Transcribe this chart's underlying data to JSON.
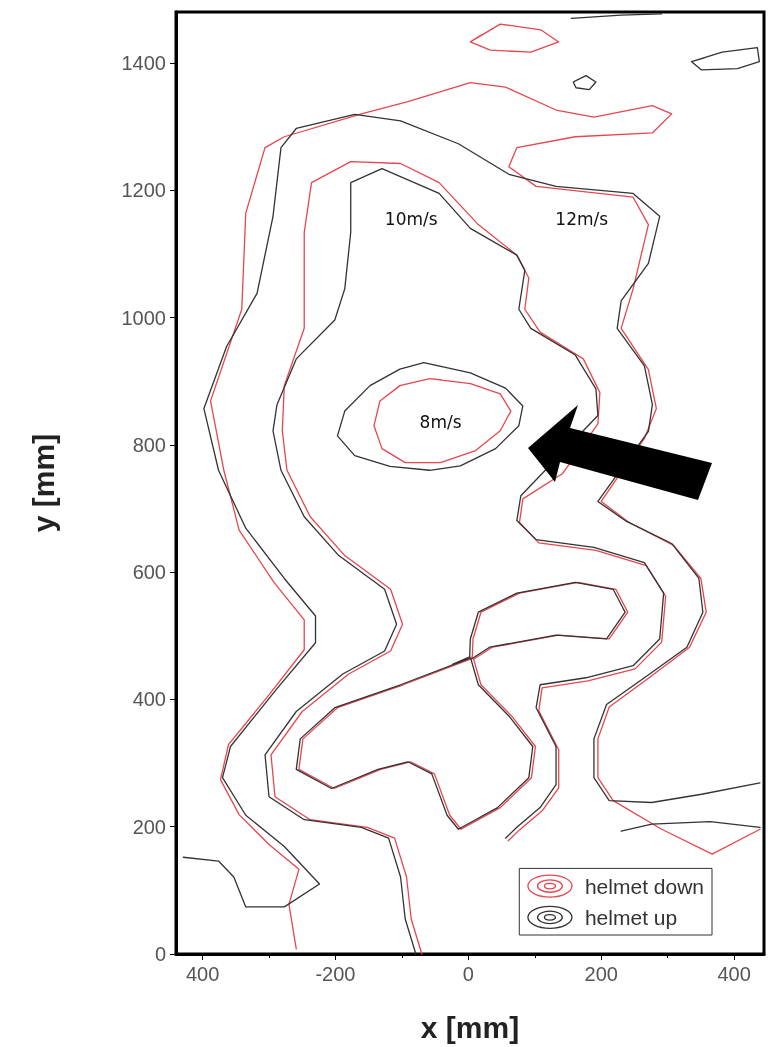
{
  "chart_data": {
    "type": "line",
    "xlabel": "x [mm]",
    "ylabel": "y [mm]",
    "xlim": [
      -440,
      445
    ],
    "ylim": [
      0,
      1480
    ],
    "xticks": [
      {
        "value": -400,
        "label": "400"
      },
      -200,
      0,
      200,
      400
    ],
    "yticks": [
      0,
      200,
      400,
      600,
      800,
      1000,
      1200,
      1400
    ],
    "grid": false,
    "legend": "bottom right",
    "marker": "none",
    "line_style": "solid",
    "annotations": [
      "10m/s",
      "12m/s",
      "8m/s"
    ],
    "series": [
      {
        "name": "helmet down",
        "color": "#e8464f",
        "x": [
          -259,
          -270,
          -255,
          -300,
          -345,
          -373,
          -361,
          -300,
          -247,
          -247,
          -292,
          -345,
          -368,
          -388,
          -341,
          -335,
          -306,
          -277,
          -161,
          -91,
          3,
          56,
          132,
          189,
          277,
          306,
          277,
          161,
          73,
          61,
          102,
          248,
          271,
          248,
          230,
          271,
          283,
          265,
          200,
          242,
          309,
          350,
          358,
          333,
          268,
          212,
          195,
          195,
          218,
          291,
          367,
          439
        ],
        "values": [
          8,
          78,
          133,
          172,
          219,
          274,
          329,
          407,
          478,
          525,
          583,
          666,
          760,
          869,
          1013,
          1164,
          1267,
          1284,
          1320,
          1339,
          1369,
          1362,
          1326,
          1315,
          1333,
          1320,
          1290,
          1284,
          1267,
          1237,
          1206,
          1189,
          1146,
          1045,
          983,
          918,
          857,
          810,
          711,
          678,
          642,
          590,
          537,
          482,
          431,
          388,
          338,
          277,
          241,
          196,
          157,
          196
        ]
      },
      {
        "color": "#e8464f",
        "x": [
          -70,
          -86,
          -93,
          -111,
          -152,
          -238,
          -291,
          -297,
          -250,
          -180,
          -117,
          -99,
          -117,
          -186,
          -238,
          -273,
          -280,
          -277,
          -247,
          -247,
          -236,
          -177,
          -102,
          -44,
          15,
          73,
          91,
          85,
          108,
          173,
          198,
          195,
          142,
          82,
          77,
          106,
          192,
          268,
          297,
          291,
          251,
          180,
          111,
          106,
          136,
          136,
          112,
          77,
          60
        ],
        "values": [
          0,
          55,
          121,
          182,
          199,
          211,
          247,
          313,
          381,
          440,
          476,
          518,
          573,
          626,
          687,
          760,
          822,
          893,
          983,
          1134,
          1212,
          1245,
          1242,
          1212,
          1146,
          1098,
          1062,
          1013,
          977,
          935,
          882,
          833,
          755,
          715,
          678,
          646,
          634,
          610,
          562,
          490,
          448,
          429,
          418,
          382,
          321,
          261,
          226,
          195,
          178
        ]
      },
      {
        "color": "#e8464f",
        "x": [
          -58,
          3,
          48,
          64,
          48,
          11,
          -42,
          -95,
          -130,
          -142,
          -133,
          -103,
          -58,
          -40
        ],
        "values": [
          904,
          896,
          880,
          853,
          822,
          791,
          772,
          772,
          794,
          830,
          869,
          893,
          904,
          902
        ]
      },
      {
        "color": "#e8464f",
        "x": [
          7,
          -98,
          -197,
          -249,
          -255,
          -202,
          -132,
          -87,
          -51,
          -28,
          -11,
          48,
          95,
          101,
          65,
          19,
          8,
          36,
          136,
          212,
          240,
          222,
          165,
          77,
          19,
          7,
          6,
          -20
        ],
        "values": [
          465,
          423,
          387,
          338,
          290,
          260,
          290,
          302,
          283,
          218,
          196,
          230,
          277,
          326,
          374,
          423,
          463,
          482,
          501,
          495,
          537,
          573,
          584,
          567,
          537,
          495,
          467,
          455
        ]
      },
      {
        "color": "#e8464f",
        "x": [
          3,
          48,
          109,
          136,
          94,
          33,
          3,
          20
        ],
        "values": [
          1433,
          1461,
          1452,
          1433,
          1417,
          1420,
          1433,
          1444
        ]
      },
      {
        "name": "helmet up",
        "color": "#333333",
        "x": [
          -429,
          -376,
          -353,
          -335,
          -277,
          -224,
          -277,
          -335,
          -370,
          -358,
          -288,
          -230,
          -230,
          -277,
          -335,
          -376,
          -398,
          -364,
          -318,
          -294,
          -282,
          -259,
          -171,
          -102,
          -15,
          61,
          132,
          248,
          288,
          271,
          230,
          224,
          265,
          277,
          271,
          195,
          236,
          306,
          347,
          353,
          329,
          265,
          208,
          189,
          189,
          212,
          276,
          351,
          439
        ],
        "values": [
          152,
          146,
          121,
          74,
          74,
          110,
          169,
          218,
          277,
          326,
          417,
          489,
          531,
          590,
          669,
          760,
          857,
          954,
          1038,
          1159,
          1267,
          1297,
          1319,
          1309,
          1273,
          1225,
          1206,
          1195,
          1159,
          1085,
          1026,
          983,
          924,
          863,
          821,
          711,
          681,
          645,
          590,
          537,
          482,
          434,
          392,
          338,
          277,
          241,
          238,
          251,
          269
        ]
      },
      {
        "color": "#333333",
        "x": [
          -79,
          -95,
          -102,
          -120,
          -161,
          -247,
          -300,
          -306,
          -259,
          -189,
          -126,
          -108,
          -126,
          -195,
          -247,
          -282,
          -294,
          -288,
          -259,
          -201,
          -186,
          -177,
          -177,
          -130,
          -44,
          3,
          73,
          85,
          76,
          94,
          161,
          192,
          195,
          79,
          73,
          102,
          189,
          265,
          294,
          288,
          248,
          177,
          108,
          102,
          132,
          132,
          108,
          73,
          56
        ],
        "values": [
          0,
          55,
          121,
          182,
          199,
          211,
          247,
          313,
          381,
          440,
          476,
          518,
          573,
          626,
          687,
          760,
          822,
          863,
          935,
          996,
          1045,
          1134,
          1212,
          1234,
          1195,
          1140,
          1098,
          1074,
          1013,
          983,
          941,
          888,
          846,
          720,
          681,
          651,
          639,
          615,
          567,
          495,
          453,
          434,
          423,
          387,
          326,
          266,
          230,
          199,
          182
        ]
      },
      {
        "color": "#333333",
        "x": [
          -67,
          3,
          56,
          82,
          76,
          41,
          -12,
          -58,
          -118,
          -171,
          -197,
          -186,
          -148,
          -103,
          -67,
          -40
        ],
        "values": [
          929,
          913,
          889,
          861,
          830,
          794,
          767,
          760,
          766,
          783,
          814,
          853,
          893,
          919,
          929,
          923
        ]
      },
      {
        "color": "#333333",
        "x": [
          3,
          -102,
          -201,
          -253,
          -259,
          -206,
          -136,
          -91,
          -55,
          -32,
          -15,
          44,
          91,
          97,
          61,
          15,
          4,
          32,
          132,
          208,
          236,
          218,
          161,
          73,
          15,
          3,
          2,
          -24
        ],
        "values": [
          465,
          423,
          387,
          338,
          290,
          260,
          290,
          302,
          283,
          218,
          196,
          230,
          277,
          326,
          374,
          423,
          463,
          482,
          501,
          495,
          537,
          573,
          584,
          567,
          537,
          495,
          467,
          455
        ]
      },
      {
        "color": "#333333",
        "x": [
          336,
          382,
          435,
          438,
          405,
          351,
          336,
          355
        ],
        "values": [
          1402,
          1417,
          1424,
          1402,
          1391,
          1389,
          1402,
          1408
        ]
      },
      {
        "color": "#333333",
        "x": [
          158,
          177,
          192,
          182,
          162,
          158,
          167
        ],
        "values": [
          1370,
          1380,
          1370,
          1358,
          1361,
          1370,
          1375
        ]
      },
      {
        "color": "#333333",
        "x": [
          155,
          230,
          291
        ],
        "values": [
          1470,
          1475,
          1477
        ]
      },
      {
        "color": "#333333",
        "x": [
          230,
          276,
          364,
          439
        ],
        "values": [
          193,
          204,
          208,
          199
        ]
      }
    ]
  }
}
